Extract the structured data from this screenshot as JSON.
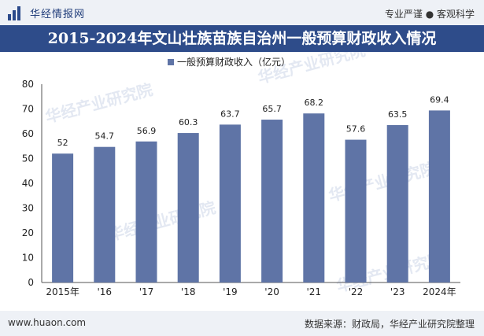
{
  "header": {
    "brand": "华经情报网",
    "tagline": "专业严谨 ● 客观科学",
    "title": "2015-2024年文山壮族苗族自治州一般预算财政收入情况"
  },
  "footer": {
    "url": "www.huaon.com",
    "source": "数据来源：财政局，华经产业研究院整理"
  },
  "watermark": "华经产业研究院",
  "colors": {
    "bar": "#5f74a6",
    "title_bg": "#2e4c8a"
  },
  "chart_data": {
    "type": "bar",
    "categories": [
      "2015年",
      "'16",
      "'17",
      "'18",
      "'19",
      "'20",
      "'21",
      "'22",
      "'23",
      "2024年"
    ],
    "series": [
      {
        "name": "一般预算财政收入（亿元）",
        "values": [
          52,
          54.7,
          56.9,
          60.3,
          63.7,
          65.7,
          68.2,
          57.6,
          63.5,
          69.4
        ]
      }
    ],
    "ylim": [
      0,
      80
    ],
    "yticks": [
      0,
      10,
      20,
      30,
      40,
      50,
      60,
      70,
      80
    ],
    "legend_position": "top-center",
    "grid": false
  }
}
